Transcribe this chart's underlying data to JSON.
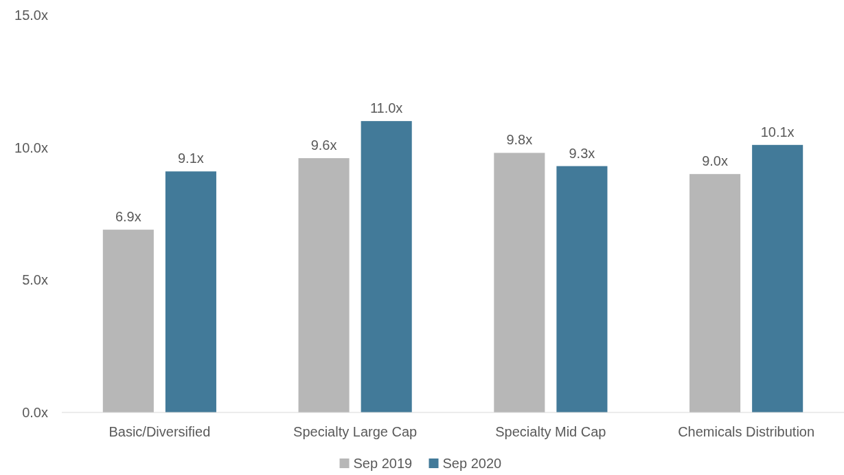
{
  "chart_data": {
    "type": "bar",
    "categories": [
      "Basic/Diversified",
      "Specialty Large Cap",
      "Specialty Mid Cap",
      "Chemicals Distribution"
    ],
    "series": [
      {
        "name": "Sep 2019",
        "color": "#b7b7b7",
        "values": [
          6.9,
          9.6,
          9.8,
          9.0
        ],
        "value_labels": [
          "6.9x",
          "9.6x",
          "9.8x",
          "9.0x"
        ]
      },
      {
        "name": "Sep 2020",
        "color": "#427a99",
        "values": [
          9.1,
          11.0,
          9.3,
          10.1
        ],
        "value_labels": [
          "9.1x",
          "11.0x",
          "9.3x",
          "10.1x"
        ]
      }
    ],
    "ylim": [
      0,
      15
    ],
    "yticks": [
      {
        "value": 0,
        "label": "0.0x"
      },
      {
        "value": 5,
        "label": "5.0x"
      },
      {
        "value": 10,
        "label": "10.0x"
      },
      {
        "value": 15,
        "label": "15.0x"
      }
    ],
    "legend": "bottom"
  }
}
